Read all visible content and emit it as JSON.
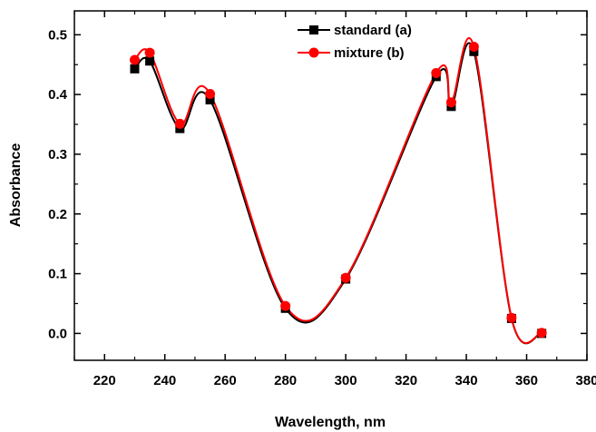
{
  "chart_data": {
    "type": "line",
    "title": "",
    "xlabel": "Wavelength, nm",
    "ylabel": "Absorbance",
    "xlim": [
      210,
      380
    ],
    "ylim": [
      -0.045,
      0.54
    ],
    "xticks": [
      220,
      240,
      260,
      280,
      300,
      320,
      340,
      360,
      380
    ],
    "yticks": [
      0.0,
      0.1,
      0.2,
      0.3,
      0.4,
      0.5
    ],
    "xtick_labels": [
      "220",
      "240",
      "260",
      "280",
      "300",
      "320",
      "340",
      "360",
      "380"
    ],
    "ytick_labels": [
      "0.0",
      "0.1",
      "0.2",
      "0.3",
      "0.4",
      "0.5"
    ],
    "grid": false,
    "legend_position": "top-center",
    "series": [
      {
        "name": "standard (a)",
        "color": "#000000",
        "marker": "square",
        "x": [
          230,
          235,
          245,
          255,
          280,
          300,
          330,
          335,
          342.5,
          355,
          365
        ],
        "y": [
          0.443,
          0.456,
          0.343,
          0.391,
          0.042,
          0.091,
          0.43,
          0.38,
          0.472,
          0.025,
          0.0
        ]
      },
      {
        "name": "mixture (b)",
        "color": "#ff0000",
        "marker": "circle",
        "x": [
          230,
          235,
          245,
          255,
          280,
          300,
          330,
          335,
          342.5,
          355,
          365
        ],
        "y": [
          0.458,
          0.47,
          0.351,
          0.401,
          0.046,
          0.093,
          0.436,
          0.387,
          0.48,
          0.026,
          0.001
        ]
      }
    ]
  }
}
